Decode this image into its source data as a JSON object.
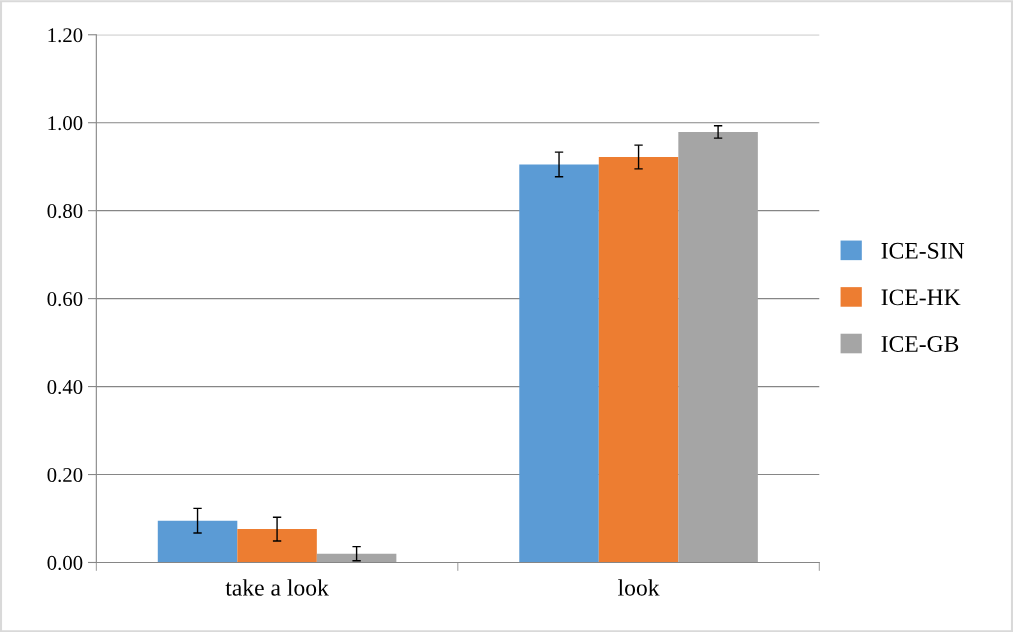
{
  "chart_data": {
    "type": "bar",
    "categories": [
      "take a look",
      "look"
    ],
    "series": [
      {
        "name": "ICE-SIN",
        "color": "#5b9bd5",
        "values": [
          0.095,
          0.905
        ],
        "errors": [
          0.028,
          0.028
        ]
      },
      {
        "name": "ICE-HK",
        "color": "#ed7d31",
        "values": [
          0.076,
          0.922
        ],
        "errors": [
          0.027,
          0.027
        ]
      },
      {
        "name": "ICE-GB",
        "color": "#a5a5a5",
        "values": [
          0.02,
          0.979
        ],
        "errors": [
          0.016,
          0.014
        ]
      }
    ],
    "ylim": [
      0,
      1.2
    ],
    "yticks": [
      {
        "value": 0,
        "label": "0.00"
      },
      {
        "value": 0.2,
        "label": "0.20"
      },
      {
        "value": 0.4,
        "label": "0.40"
      },
      {
        "value": 0.6,
        "label": "0.60"
      },
      {
        "value": 0.8,
        "label": "0.80"
      },
      {
        "value": 1.0,
        "label": "1.00"
      },
      {
        "value": 1.2,
        "label": "1.20"
      }
    ],
    "grid": "y",
    "legend": "right"
  }
}
